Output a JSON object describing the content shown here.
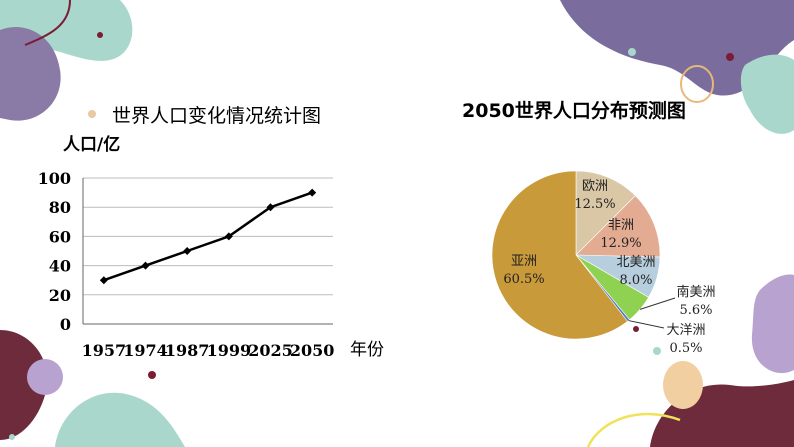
{
  "charts": {
    "population": {
      "title": "世界人口变化情况统计图",
      "ylabel": "人口/亿",
      "xlabel": "年份"
    },
    "distribution": {
      "title": "2050世界人口分布预测图"
    }
  },
  "colors": {
    "line": "#000000",
    "asia": "#c99a3a",
    "europe": "#d9c7a6",
    "africa": "#e3ab92",
    "north_america": "#b6cedd",
    "south_america": "#8fd150",
    "oceania": "#4d7cbf"
  },
  "chart_data": [
    {
      "type": "line",
      "title": "世界人口变化情况统计图",
      "ylabel": "人口/亿",
      "xlabel": "年份",
      "categories": [
        "1957",
        "1974",
        "1987",
        "1999",
        "2025",
        "2050"
      ],
      "values": [
        30,
        40,
        50,
        60,
        80,
        90
      ],
      "ylim": [
        0,
        100
      ],
      "yticks": [
        0,
        20,
        40,
        60,
        80,
        100
      ],
      "grid": true
    },
    {
      "type": "pie",
      "title": "2050世界人口分布预测图",
      "slices": [
        {
          "name": "亚洲",
          "pct_label": "60.5%",
          "value": 60.5,
          "color": "#c99a3a"
        },
        {
          "name": "欧洲",
          "pct_label": "12.5%",
          "value": 12.5,
          "color": "#d9c7a6"
        },
        {
          "name": "非洲",
          "pct_label": "12.9%",
          "value": 12.9,
          "color": "#e3ab92"
        },
        {
          "name": "北美洲",
          "pct_label": "8.0%",
          "value": 8.0,
          "color": "#b6cedd"
        },
        {
          "name": "南美洲",
          "pct_label": "5.6%",
          "value": 5.6,
          "color": "#8fd150"
        },
        {
          "name": "大洋洲",
          "pct_label": "0.5%",
          "value": 0.5,
          "color": "#4d7cbf"
        }
      ]
    }
  ]
}
